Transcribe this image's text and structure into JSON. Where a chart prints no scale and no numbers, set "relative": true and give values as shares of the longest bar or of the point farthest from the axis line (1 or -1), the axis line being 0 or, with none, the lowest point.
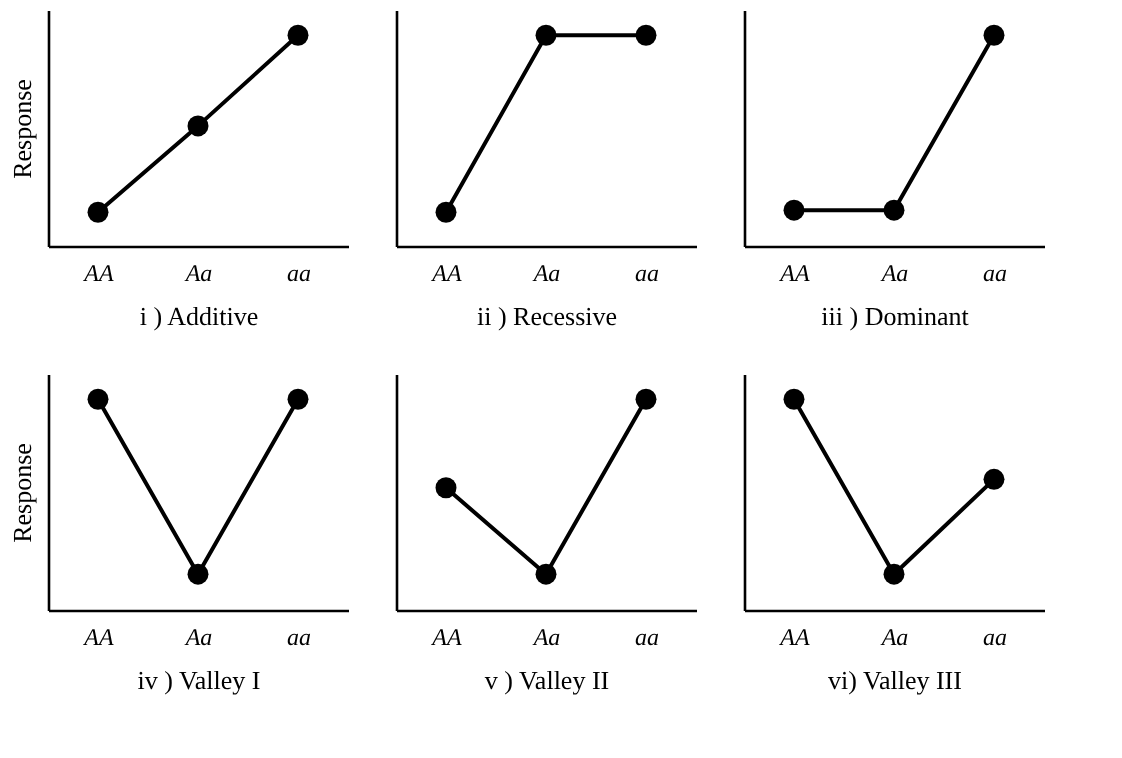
{
  "chart_data": [
    {
      "type": "line",
      "relative": true,
      "categories": [
        "AA",
        "Aa",
        "aa"
      ],
      "values": [
        0.16,
        0.57,
        1
      ],
      "color": "#000000",
      "marker": "circle",
      "line_style": "solid",
      "xlabel": "i ) Additive",
      "ylabel": "Response",
      "tick_labels": "x",
      "grid": false
    },
    {
      "type": "line",
      "relative": true,
      "categories": [
        "AA",
        "Aa",
        "aa"
      ],
      "values": [
        0.16,
        1,
        1
      ],
      "color": "#000000",
      "marker": "circle",
      "line_style": "solid",
      "xlabel": "ii ) Recessive",
      "tick_labels": "x",
      "grid": false
    },
    {
      "type": "line",
      "relative": true,
      "categories": [
        "AA",
        "Aa",
        "aa"
      ],
      "values": [
        0.17,
        0.17,
        1
      ],
      "color": "#000000",
      "marker": "circle",
      "line_style": "solid",
      "xlabel": "iii ) Dominant",
      "tick_labels": "x",
      "grid": false
    },
    {
      "type": "line",
      "relative": true,
      "categories": [
        "AA",
        "Aa",
        "aa"
      ],
      "values": [
        1,
        0.17,
        1
      ],
      "color": "#000000",
      "marker": "circle",
      "line_style": "solid",
      "xlabel": "iv ) Valley I",
      "ylabel": "Response",
      "tick_labels": "x",
      "grid": false
    },
    {
      "type": "line",
      "relative": true,
      "categories": [
        "AA",
        "Aa",
        "aa"
      ],
      "values": [
        0.58,
        0.17,
        1
      ],
      "color": "#000000",
      "marker": "circle",
      "line_style": "solid",
      "xlabel": "v ) Valley II",
      "tick_labels": "x",
      "grid": false
    },
    {
      "type": "line",
      "relative": true,
      "categories": [
        "AA",
        "Aa",
        "aa"
      ],
      "values": [
        1,
        0.17,
        0.62
      ],
      "color": "#000000",
      "marker": "circle",
      "line_style": "solid",
      "xlabel": "vi) Valley III",
      "tick_labels": "x",
      "grid": false
    }
  ]
}
